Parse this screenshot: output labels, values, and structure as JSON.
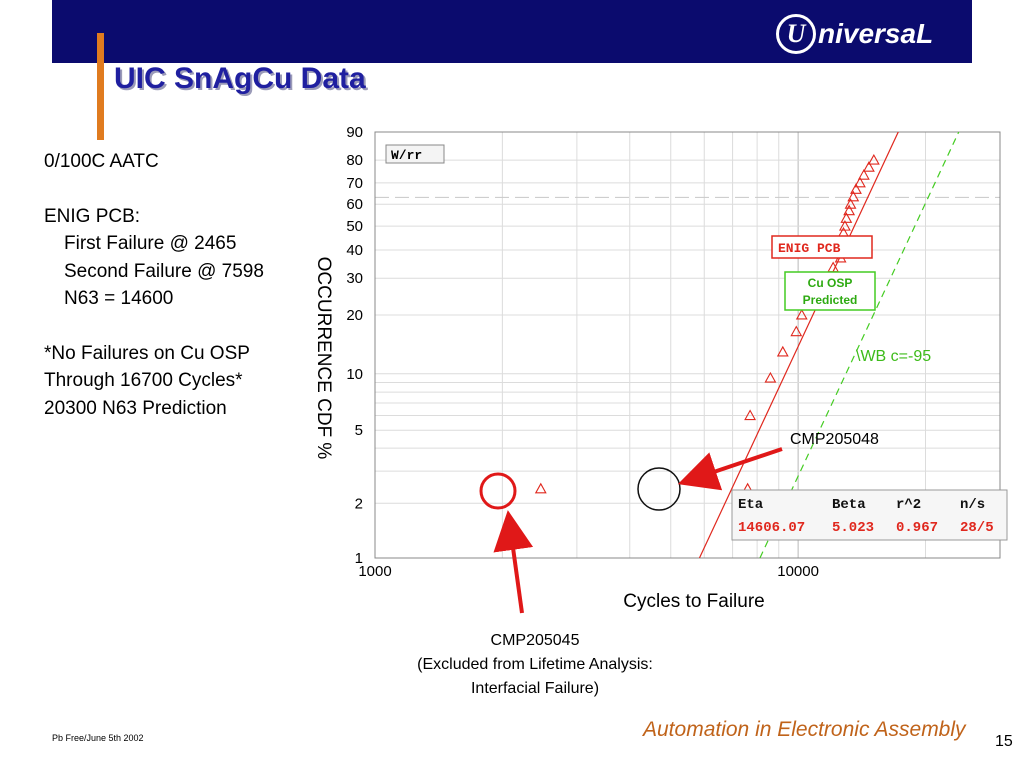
{
  "slide": {
    "title": "UIC SnAgCu Data",
    "logo_text": "niversaL",
    "logo_mark": "U",
    "footer_left": "Pb Free/June 5th 2002",
    "footer_tagline": "Automation in Electronic Assembly",
    "page_number": "15",
    "colors": {
      "header": "#0b0b6e",
      "accent": "#e07b1f",
      "title": "#1f1fa0",
      "tagline": "#c0631a"
    }
  },
  "notes": {
    "line1": "0/100C AATC",
    "line2": "ENIG PCB:",
    "line3": "First Failure @ 2465",
    "line4": "Second Failure @ 7598",
    "line5": "N63 = 14600",
    "line6": "*No Failures on Cu OSP",
    "line7": "Through 16700 Cycles*",
    "line8": "20300 N63 Prediction"
  },
  "callouts": {
    "cmp205048": "CMP205048",
    "cmp205045_line1": "CMP205045",
    "cmp205045_line2": "(Excluded from Lifetime Analysis:",
    "cmp205045_line3": "Interfacial Failure)"
  },
  "chart_data": {
    "type": "scatter",
    "title": "",
    "xlabel": "Cycles to Failure",
    "ylabel": "OCCURRENCE CDF %",
    "xscale": "log",
    "yscale": "weibull",
    "xlim": [
      1000,
      30000
    ],
    "ylim": [
      1,
      90
    ],
    "x_ticks": [
      {
        "value": 1000,
        "label": "1000"
      },
      {
        "value": 10000,
        "label": "10000"
      }
    ],
    "y_ticks": [
      {
        "value": 1,
        "label": "1"
      },
      {
        "value": 2,
        "label": "2"
      },
      {
        "value": 5,
        "label": "5"
      },
      {
        "value": 10,
        "label": "10"
      },
      {
        "value": 20,
        "label": "20"
      },
      {
        "value": 30,
        "label": "30"
      },
      {
        "value": 40,
        "label": "40"
      },
      {
        "value": 50,
        "label": "50"
      },
      {
        "value": 60,
        "label": "60"
      },
      {
        "value": 70,
        "label": "70"
      },
      {
        "value": 80,
        "label": "80"
      },
      {
        "value": 90,
        "label": "90"
      }
    ],
    "grid": true,
    "legend": {
      "method": "W/rr",
      "enig_label": "ENIG PCB",
      "osp_label_line1": "Cu OSP",
      "osp_label_line2": "Predicted",
      "wb_note": "\\WB c=-95"
    },
    "stats": {
      "headers": [
        "Eta",
        "Beta",
        "r^2",
        "n/s"
      ],
      "values": [
        "14606.07",
        "5.023",
        "0.967",
        "28/5"
      ]
    },
    "series": [
      {
        "name": "ENIG PCB",
        "color": "#e0281e",
        "points": [
          {
            "x": 2465,
            "y": 2.4
          },
          {
            "x": 7598,
            "y": 2.4
          },
          {
            "x": 7700,
            "y": 6.0
          },
          {
            "x": 8600,
            "y": 9.5
          },
          {
            "x": 9200,
            "y": 13
          },
          {
            "x": 9900,
            "y": 16.5
          },
          {
            "x": 10200,
            "y": 20
          },
          {
            "x": 10600,
            "y": 23
          },
          {
            "x": 11500,
            "y": 30
          },
          {
            "x": 12100,
            "y": 33.5
          },
          {
            "x": 12600,
            "y": 37
          },
          {
            "x": 12700,
            "y": 40
          },
          {
            "x": 12750,
            "y": 43.5
          },
          {
            "x": 12800,
            "y": 47
          },
          {
            "x": 12900,
            "y": 50
          },
          {
            "x": 13000,
            "y": 53.5
          },
          {
            "x": 13200,
            "y": 57
          },
          {
            "x": 13300,
            "y": 60
          },
          {
            "x": 13500,
            "y": 63.5
          },
          {
            "x": 13700,
            "y": 67
          },
          {
            "x": 14000,
            "y": 70
          },
          {
            "x": 14300,
            "y": 73.5
          },
          {
            "x": 14700,
            "y": 77
          },
          {
            "x": 15100,
            "y": 80
          }
        ]
      }
    ],
    "fit_lines": [
      {
        "name": "ENIG PCB",
        "style": "solid",
        "color": "#e0281e",
        "eta": 14606.07,
        "beta": 5.023
      },
      {
        "name": "Cu OSP Predicted",
        "style": "dashed",
        "color": "#44cc22",
        "eta": 20300,
        "beta": 5.023
      }
    ]
  }
}
